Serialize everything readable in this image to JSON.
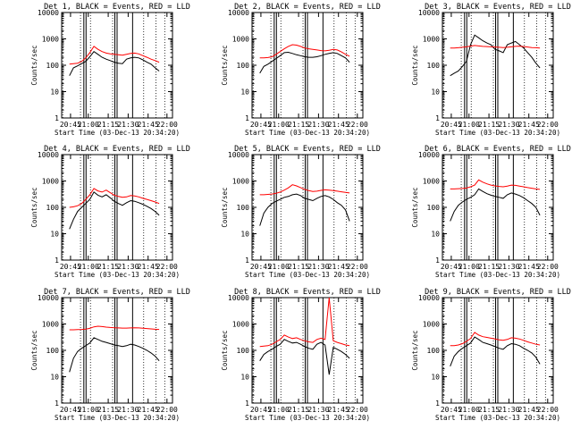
{
  "figure": {
    "background": "#ffffff",
    "axis_color": "#000000",
    "series_colors": {
      "events": "#000000",
      "lld": "#ff0000"
    }
  },
  "chart_data": [
    {
      "type": "line",
      "title": "Det 1, BLACK = Events, RED = LLD",
      "xlabel": "Start Time (03-Dec-13 20:34:20)",
      "ylabel": "Counts/sec",
      "yscale": "log",
      "ylim": [
        1,
        10000
      ],
      "x_tick_labels": [
        "20:45",
        "21:00",
        "21:15",
        "21:30",
        "21:45",
        "22:00"
      ],
      "y_tick_labels": [
        "1",
        "10",
        "100",
        "1000",
        "10000"
      ],
      "series": [
        {
          "values": [
            40,
            80,
            95,
            115,
            140,
            210,
            330,
            260,
            200,
            170,
            150,
            130,
            120,
            115,
            170,
            190,
            200,
            190,
            160,
            130,
            110,
            80,
            60
          ]
        },
        {
          "values": [
            110,
            115,
            120,
            140,
            190,
            300,
            520,
            400,
            330,
            290,
            270,
            260,
            250,
            240,
            260,
            280,
            290,
            270,
            230,
            200,
            170,
            150,
            130
          ]
        }
      ]
    },
    {
      "type": "line",
      "title": "Det 2, BLACK = Events, RED = LLD",
      "xlabel": "Start Time (03-Dec-13 20:34:20)",
      "ylabel": "Counts/sec",
      "yscale": "log",
      "ylim": [
        1,
        10000
      ],
      "x_tick_labels": [
        "20:45",
        "21:00",
        "21:15",
        "21:30",
        "21:45",
        "22:00"
      ],
      "y_tick_labels": [
        "1",
        "10",
        "100",
        "1000",
        "10000"
      ],
      "series": [
        {
          "values": [
            50,
            90,
            110,
            140,
            180,
            230,
            300,
            310,
            280,
            250,
            230,
            210,
            200,
            200,
            210,
            230,
            260,
            280,
            300,
            280,
            230,
            190,
            130
          ]
        },
        {
          "values": [
            190,
            190,
            195,
            210,
            260,
            330,
            420,
            520,
            600,
            580,
            520,
            450,
            420,
            400,
            380,
            360,
            350,
            370,
            400,
            380,
            320,
            260,
            220
          ]
        }
      ]
    },
    {
      "type": "line",
      "title": "Det 3, BLACK = Events, RED = LLD",
      "xlabel": "Start Time (03-Dec-13 20:34:20)",
      "ylabel": "Counts/sec",
      "yscale": "log",
      "ylim": [
        1,
        10000
      ],
      "x_tick_labels": [
        "20:45",
        "21:00",
        "21:15",
        "21:30",
        "21:45",
        "22:00"
      ],
      "y_tick_labels": [
        "1",
        "10",
        "100",
        "1000",
        "10000"
      ],
      "series": [
        {
          "values": [
            40,
            50,
            60,
            90,
            140,
            600,
            1400,
            1100,
            850,
            700,
            600,
            400,
            350,
            300,
            600,
            700,
            800,
            600,
            450,
            300,
            200,
            120,
            80
          ]
        },
        {
          "values": [
            450,
            450,
            460,
            480,
            500,
            530,
            560,
            540,
            520,
            510,
            500,
            490,
            480,
            470,
            480,
            500,
            520,
            530,
            510,
            490,
            470,
            460,
            450
          ]
        }
      ]
    },
    {
      "type": "line",
      "title": "Det 4, BLACK = Events, RED = LLD",
      "xlabel": "Start Time (03-Dec-13 20:34:20)",
      "ylabel": "Counts/sec",
      "yscale": "log",
      "ylim": [
        1,
        10000
      ],
      "x_tick_labels": [
        "20:45",
        "21:00",
        "21:15",
        "21:30",
        "21:45",
        "22:00"
      ],
      "y_tick_labels": [
        "1",
        "10",
        "100",
        "1000",
        "10000"
      ],
      "series": [
        {
          "values": [
            15,
            35,
            70,
            100,
            140,
            200,
            380,
            290,
            250,
            300,
            230,
            170,
            140,
            120,
            150,
            180,
            170,
            150,
            130,
            110,
            90,
            70,
            50
          ]
        },
        {
          "values": [
            100,
            105,
            115,
            140,
            200,
            300,
            520,
            420,
            380,
            450,
            360,
            290,
            260,
            240,
            250,
            280,
            270,
            250,
            220,
            200,
            180,
            160,
            140
          ]
        }
      ]
    },
    {
      "type": "line",
      "title": "Det 5, BLACK = Events, RED = LLD",
      "xlabel": "Start Time (03-Dec-13 20:34:20)",
      "ylabel": "Counts/sec",
      "yscale": "log",
      "ylim": [
        1,
        10000
      ],
      "x_tick_labels": [
        "20:45",
        "21:00",
        "21:15",
        "21:30",
        "21:45",
        "22:00"
      ],
      "y_tick_labels": [
        "1",
        "10",
        "100",
        "1000",
        "10000"
      ],
      "series": [
        {
          "values": [
            20,
            60,
            100,
            140,
            170,
            200,
            240,
            260,
            300,
            320,
            280,
            220,
            200,
            180,
            220,
            260,
            280,
            250,
            200,
            150,
            120,
            80,
            30
          ]
        },
        {
          "values": [
            300,
            300,
            310,
            320,
            340,
            380,
            450,
            550,
            720,
            650,
            560,
            480,
            430,
            400,
            410,
            440,
            460,
            450,
            430,
            410,
            390,
            370,
            350
          ]
        }
      ]
    },
    {
      "type": "line",
      "title": "Det 6, BLACK = Events, RED = LLD",
      "xlabel": "Start Time (03-Dec-13 20:34:20)",
      "ylabel": "Counts/sec",
      "yscale": "log",
      "ylim": [
        1,
        10000
      ],
      "x_tick_labels": [
        "20:45",
        "21:00",
        "21:15",
        "21:30",
        "21:45",
        "22:00"
      ],
      "y_tick_labels": [
        "1",
        "10",
        "100",
        "1000",
        "10000"
      ],
      "series": [
        {
          "values": [
            30,
            70,
            120,
            160,
            200,
            240,
            300,
            500,
            400,
            330,
            290,
            260,
            240,
            220,
            300,
            350,
            320,
            280,
            230,
            180,
            140,
            100,
            50
          ]
        },
        {
          "values": [
            500,
            500,
            510,
            520,
            540,
            600,
            700,
            1100,
            900,
            780,
            700,
            650,
            620,
            600,
            640,
            700,
            680,
            640,
            600,
            560,
            530,
            500,
            480
          ]
        }
      ]
    },
    {
      "type": "line",
      "title": "Det 7, BLACK = Events, RED = LLD",
      "xlabel": "Start Time (03-Dec-13 20:34:20)",
      "ylabel": "Counts/sec",
      "yscale": "log",
      "ylim": [
        1,
        10000
      ],
      "x_tick_labels": [
        "20:45",
        "21:00",
        "21:15",
        "21:30",
        "21:45",
        "22:00"
      ],
      "y_tick_labels": [
        "1",
        "10",
        "100",
        "1000",
        "10000"
      ],
      "series": [
        {
          "values": [
            15,
            50,
            90,
            120,
            150,
            190,
            300,
            260,
            220,
            200,
            180,
            160,
            150,
            140,
            150,
            170,
            160,
            140,
            120,
            100,
            80,
            60,
            40
          ]
        },
        {
          "values": [
            600,
            600,
            610,
            620,
            640,
            680,
            780,
            820,
            800,
            760,
            740,
            720,
            710,
            700,
            700,
            710,
            720,
            710,
            690,
            670,
            650,
            630,
            620
          ]
        }
      ]
    },
    {
      "type": "line",
      "title": "Det 8, BLACK = Events, RED = LLD",
      "xlabel": "Start Time (03-Dec-13 20:34:20)",
      "ylabel": "Counts/sec",
      "yscale": "log",
      "ylim": [
        1,
        10000
      ],
      "x_tick_labels": [
        "20:45",
        "21:00",
        "21:15",
        "21:30",
        "21:45",
        "22:00"
      ],
      "y_tick_labels": [
        "1",
        "10",
        "100",
        "1000",
        "10000"
      ],
      "series": [
        {
          "values": [
            40,
            70,
            90,
            110,
            140,
            170,
            260,
            220,
            190,
            200,
            170,
            140,
            120,
            110,
            170,
            200,
            160,
            12,
            130,
            110,
            90,
            70,
            50
          ]
        },
        {
          "values": [
            140,
            145,
            150,
            170,
            210,
            260,
            380,
            320,
            280,
            300,
            260,
            230,
            210,
            200,
            260,
            290,
            260,
            10000,
            230,
            200,
            180,
            160,
            150
          ]
        }
      ]
    },
    {
      "type": "line",
      "title": "Det 9, BLACK = Events, RED = LLD",
      "xlabel": "Start Time (03-Dec-13 20:34:20)",
      "ylabel": "Counts/sec",
      "yscale": "log",
      "ylim": [
        1,
        10000
      ],
      "x_tick_labels": [
        "20:45",
        "21:00",
        "21:15",
        "21:30",
        "21:45",
        "22:00"
      ],
      "y_tick_labels": [
        "1",
        "10",
        "100",
        "1000",
        "10000"
      ],
      "series": [
        {
          "values": [
            25,
            60,
            90,
            120,
            150,
            190,
            320,
            260,
            200,
            180,
            160,
            140,
            120,
            110,
            150,
            180,
            170,
            150,
            120,
            100,
            80,
            55,
            30
          ]
        },
        {
          "values": [
            150,
            150,
            160,
            180,
            220,
            280,
            480,
            380,
            330,
            310,
            290,
            270,
            250,
            240,
            260,
            300,
            290,
            270,
            240,
            210,
            190,
            170,
            160
          ]
        }
      ]
    }
  ]
}
